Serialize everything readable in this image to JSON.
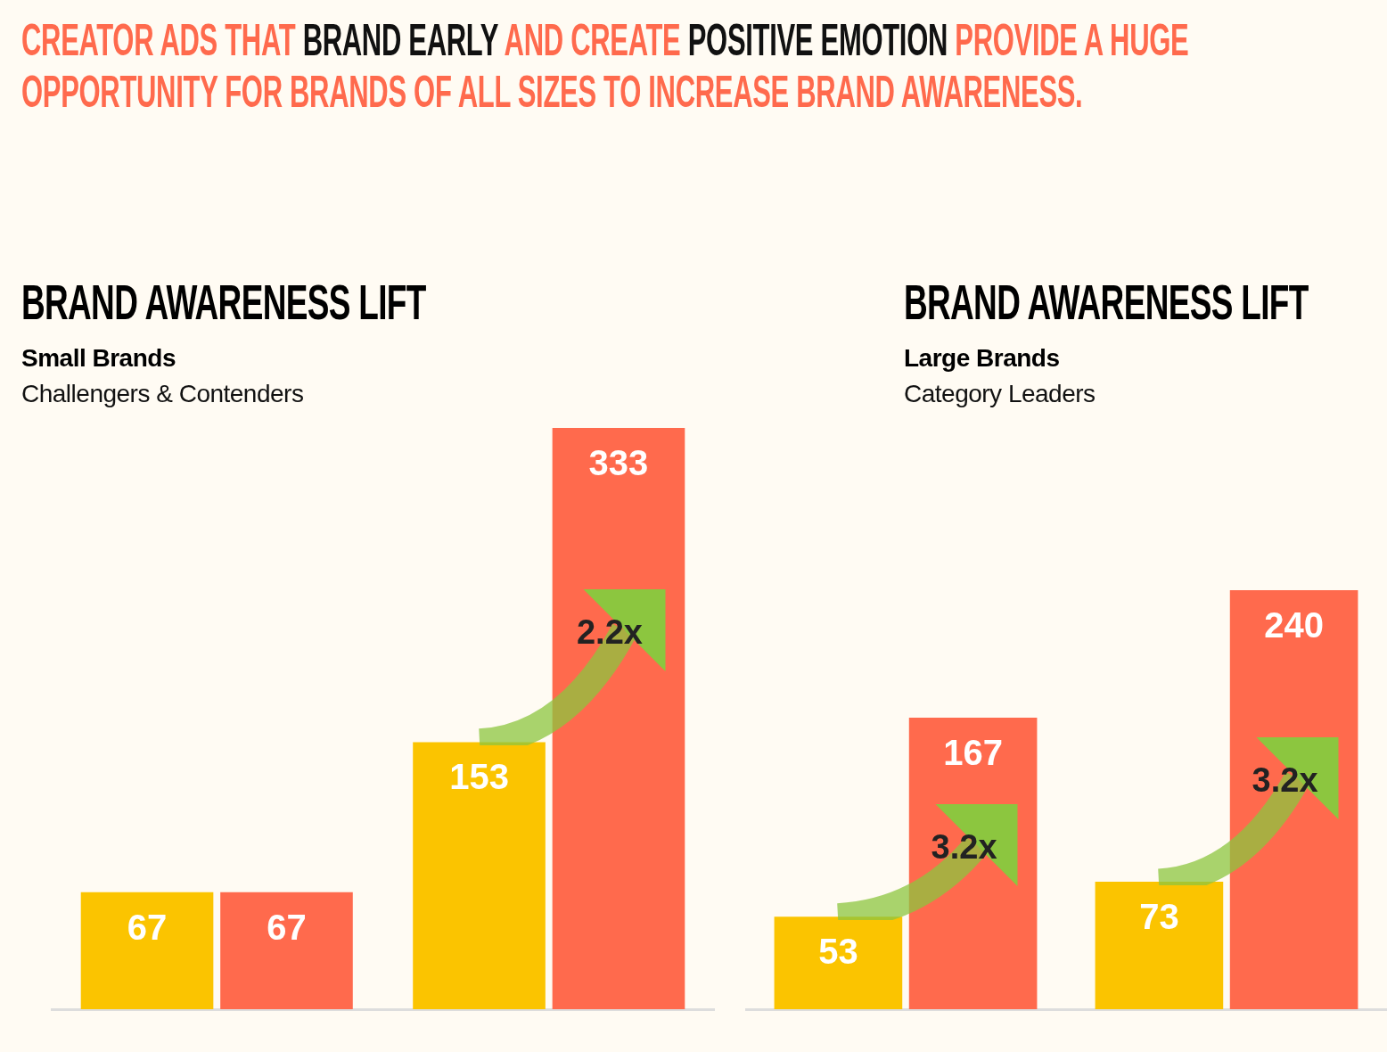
{
  "chart_data": [
    {
      "type": "other",
      "annotations": [
        "CREATOR ADS THAT",
        "BRAND EARLY",
        "AND CREATE",
        "POSITIVE EMOTION",
        "PROVIDE A HUGE OPPORTUNITY FOR BRANDS OF ALL SIZES TO INCREASE BRAND AWARENESS."
      ]
    },
    {
      "type": "bar",
      "title": "BRAND AWARENESS LIFT",
      "subtitle": "Small Brands",
      "categories": [
        null,
        null
      ],
      "tick_labels": false,
      "data_labels": true,
      "series": [
        {
          "color": "#fbc400",
          "values": [
            67,
            153
          ]
        },
        {
          "color": "#ff6a4d",
          "values": [
            67,
            333
          ]
        }
      ],
      "annotations": [
        "Challengers & Contenders",
        "2.2x"
      ]
    },
    {
      "type": "bar",
      "title": "BRAND AWARENESS LIFT",
      "subtitle": "Large Brands",
      "categories": [
        null,
        null
      ],
      "tick_labels": false,
      "data_labels": true,
      "series": [
        {
          "color": "#fbc400",
          "values": [
            53,
            73
          ]
        },
        {
          "color": "#ff6a4d",
          "values": [
            167,
            240
          ]
        }
      ],
      "annotations": [
        "Category Leaders",
        "3.2x",
        "3.2x"
      ]
    }
  ]
}
